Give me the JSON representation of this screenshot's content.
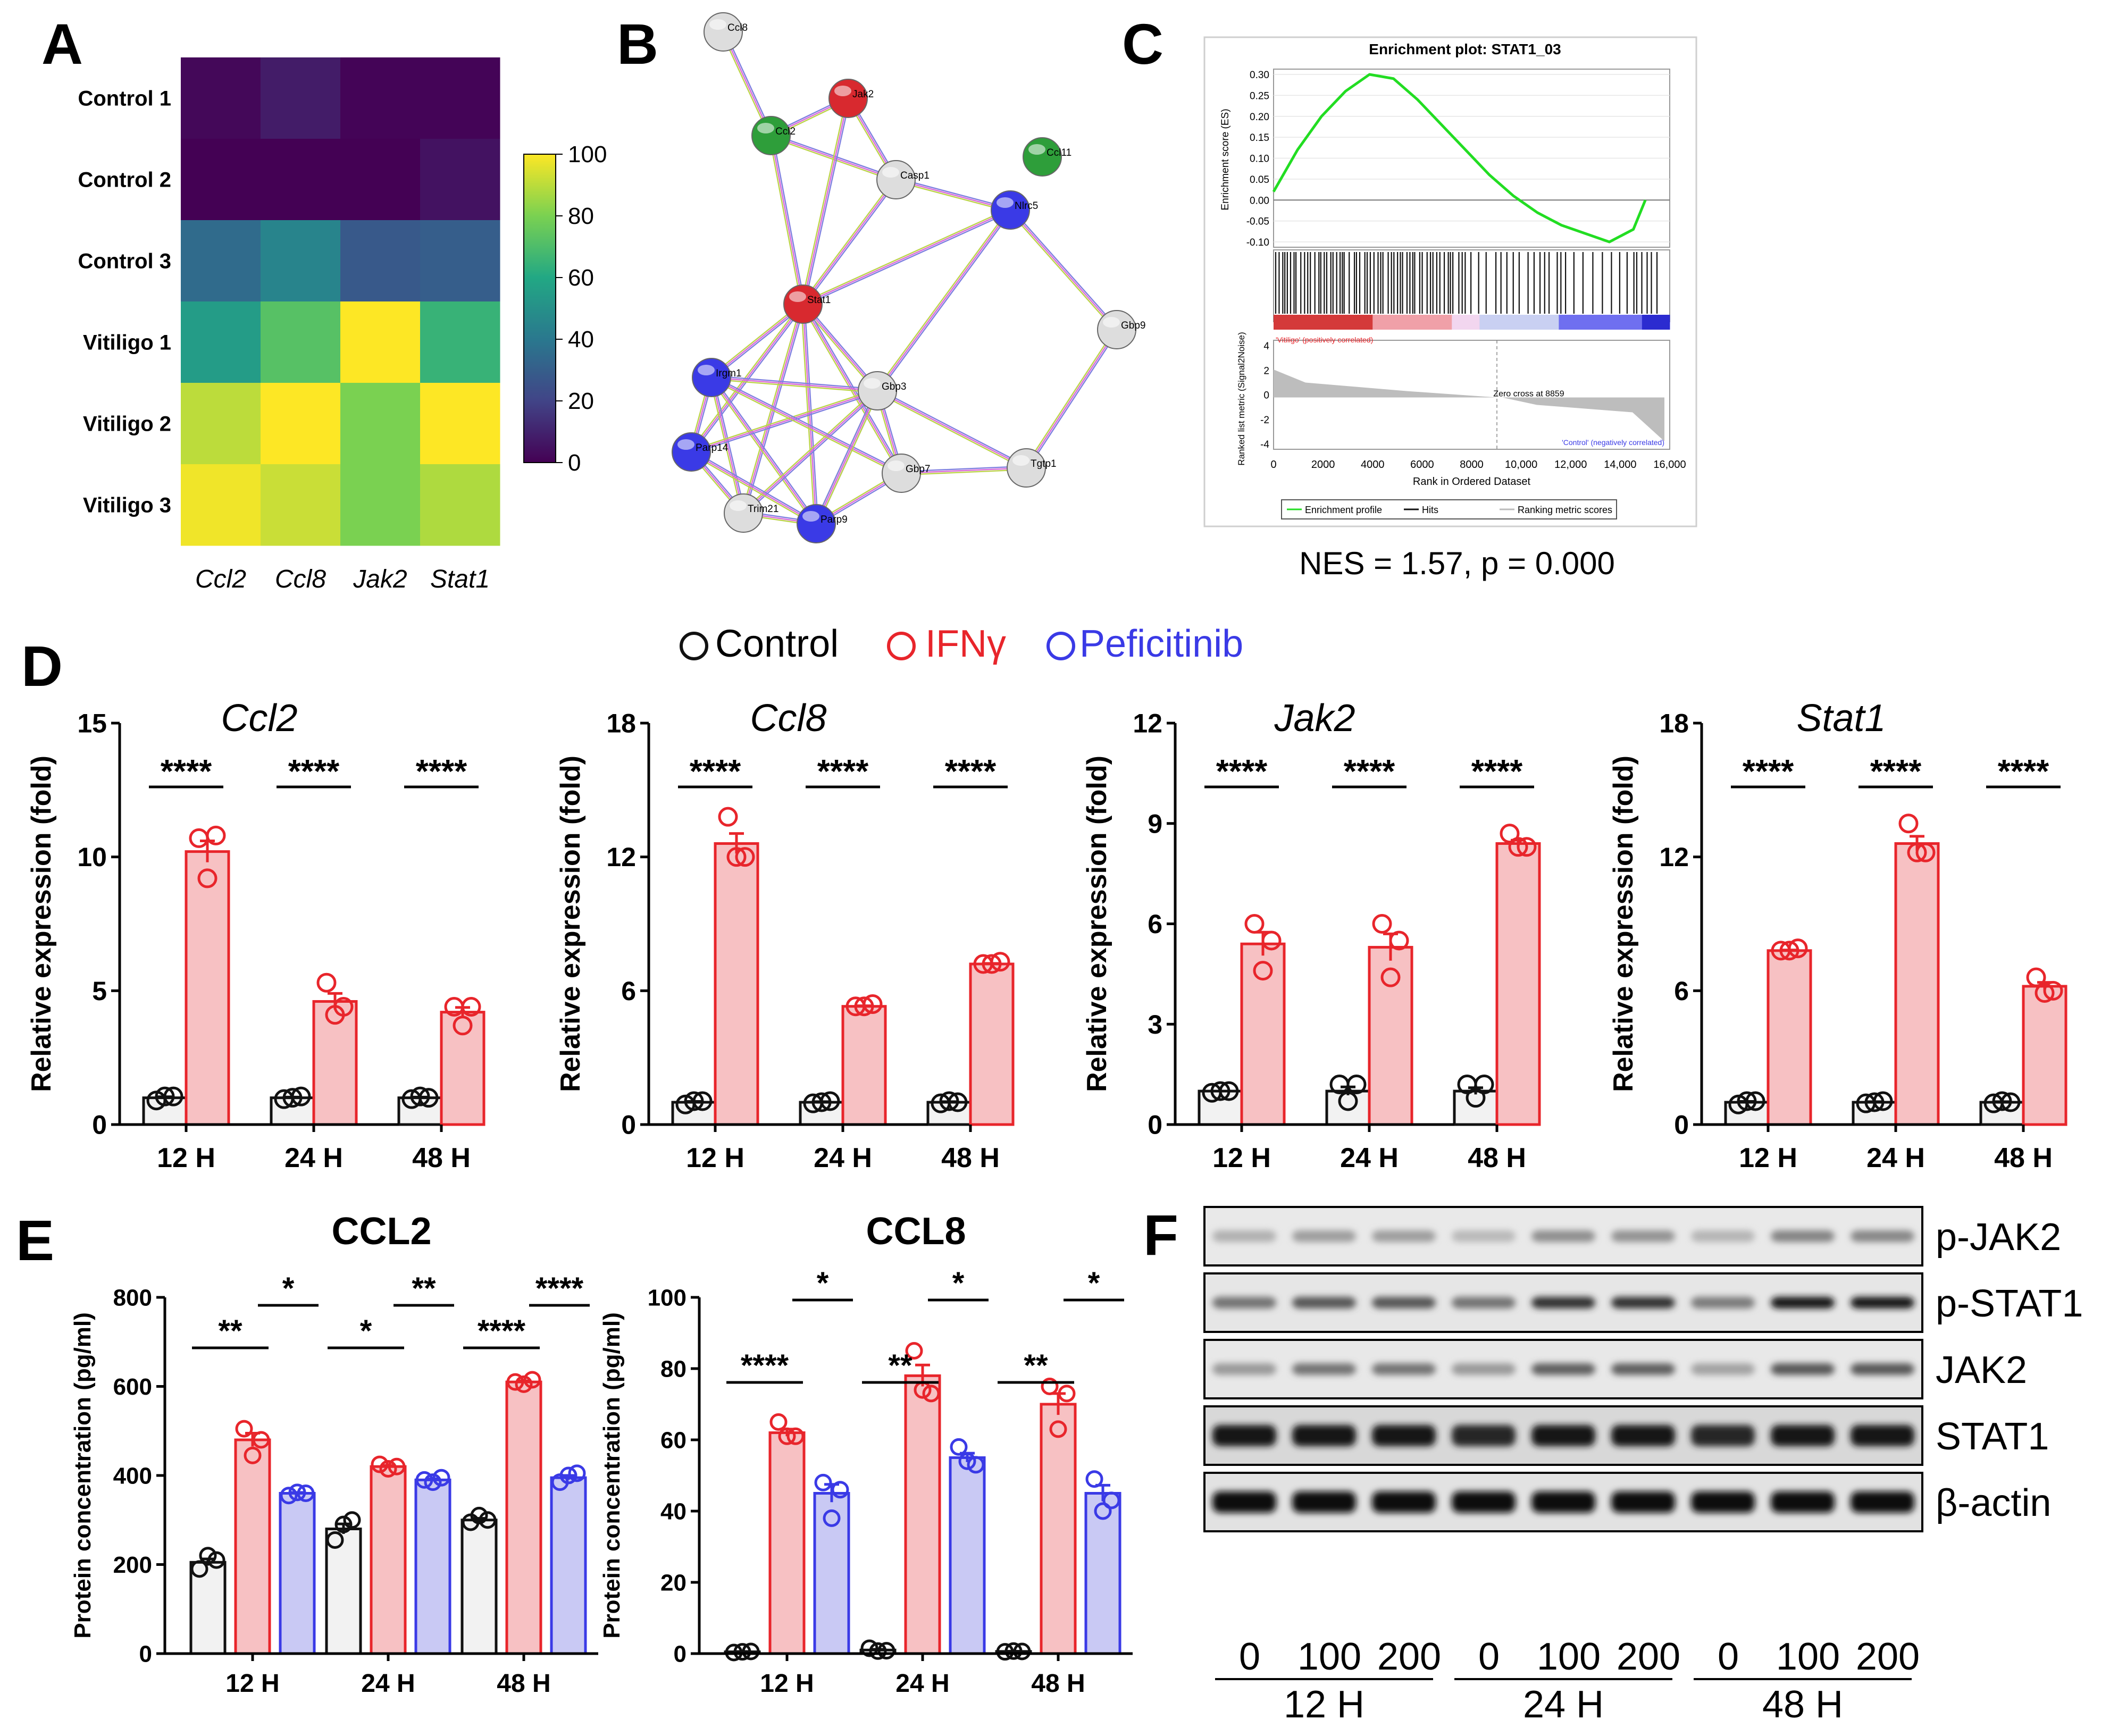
{
  "colors": {
    "control": "#111111",
    "ifng": "#e8252b",
    "peficitinib": "#3a3ae6",
    "ifng_fill": "#f7c1c3",
    "pef_fill": "#c9c9f4",
    "ctrl_fill": "#f2f2f2"
  },
  "panels": {
    "A": "A",
    "B": "B",
    "C": "C",
    "D": "D",
    "E": "E",
    "F": "F"
  },
  "legend": {
    "control": "Control",
    "ifng": "IFNγ",
    "peficitinib": "Peficitinib"
  },
  "network": {
    "nodes": [
      {
        "name": "Ccl8",
        "color": "#dddddd"
      },
      {
        "name": "Jak2",
        "color": "#d8292f"
      },
      {
        "name": "Ccl2",
        "color": "#2e9e3a"
      },
      {
        "name": "Casp1",
        "color": "#dddddd"
      },
      {
        "name": "Ccl11",
        "color": "#2e9e3a"
      },
      {
        "name": "Nlrc5",
        "color": "#3a3ae6"
      },
      {
        "name": "Stat1",
        "color": "#d8292f"
      },
      {
        "name": "Gbp9",
        "color": "#dddddd"
      },
      {
        "name": "Irgm1",
        "color": "#3a3ae6"
      },
      {
        "name": "Gbp3",
        "color": "#dddddd"
      },
      {
        "name": "Parp14",
        "color": "#3a3ae6"
      },
      {
        "name": "Gbp7",
        "color": "#dddddd"
      },
      {
        "name": "Tgtp1",
        "color": "#dddddd"
      },
      {
        "name": "Trim21",
        "color": "#dddddd"
      },
      {
        "name": "Parp9",
        "color": "#3a3ae6"
      }
    ]
  },
  "gsea": {
    "title": "Enrichment plot: STAT1_03",
    "es_label": "Enrichment score (ES)",
    "metric_label": "Ranked list metric (Signal2Noise)",
    "x_label": "Rank in Ordered Dataset",
    "pos_label": "'Vitiligo' (positively correlated)",
    "neg_label": "'Control' (negatively correlated)",
    "zero_cross": "Zero cross at 8859",
    "legend": [
      "Enrichment profile",
      "Hits",
      "Ranking metric scores"
    ],
    "stat": "NES = 1.57, p = 0.000"
  },
  "western": {
    "labels": [
      "p-JAK2",
      "p-STAT1",
      "JAK2",
      "STAT1",
      "β-actin"
    ],
    "doses": [
      "0",
      "100",
      "200",
      "0",
      "100",
      "200",
      "0",
      "100",
      "200"
    ],
    "times": [
      "12 H",
      "24 H",
      "48 H"
    ]
  },
  "chart_data": [
    {
      "type": "heatmap",
      "panel": "A",
      "rows": [
        "Control 1",
        "Control 2",
        "Control 3",
        "Vitiligo 1",
        "Vitiligo 2",
        "Vitiligo 3"
      ],
      "columns": [
        "Ccl2",
        "Ccl8",
        "Jak2",
        "Stat1"
      ],
      "values": [
        [
          2,
          8,
          1,
          1
        ],
        [
          0,
          0,
          0,
          5
        ],
        [
          35,
          45,
          28,
          30
        ],
        [
          55,
          72,
          100,
          65
        ],
        [
          90,
          100,
          80,
          100
        ],
        [
          98,
          92,
          80,
          88
        ]
      ],
      "colorbar": {
        "min": 0,
        "max": 100,
        "ticks": [
          "100",
          "80",
          "60",
          "40",
          "20",
          "0"
        ]
      }
    },
    {
      "type": "line",
      "panel": "C",
      "title": "Enrichment plot: STAT1_03",
      "xlabel": "Rank in Ordered Dataset",
      "ylabel": "Enrichment score (ES)",
      "xlim": [
        0,
        16000
      ],
      "ylim": [
        -0.1,
        0.3
      ],
      "x": [
        0,
        1000,
        2000,
        3000,
        4000,
        5000,
        6000,
        7000,
        8000,
        9000,
        10000,
        11000,
        12000,
        13000,
        14000,
        15000,
        15500
      ],
      "y": [
        0.02,
        0.12,
        0.2,
        0.26,
        0.3,
        0.29,
        0.24,
        0.18,
        0.12,
        0.06,
        0.01,
        -0.03,
        -0.06,
        -0.08,
        -0.1,
        -0.07,
        0.0
      ],
      "xticks": [
        "0",
        "2000",
        "4000",
        "6000",
        "8000",
        "10,000",
        "12,000",
        "14,000",
        "16,000"
      ],
      "yticks": [
        "0.30",
        "0.25",
        "0.20",
        "0.15",
        "0.10",
        "0.05",
        "0.00",
        "-0.05",
        "-0.10"
      ],
      "metric_yticks": [
        "4",
        "2",
        "0",
        "-2",
        "-4"
      ]
    },
    {
      "type": "bar",
      "panel": "D",
      "title": "Ccl2",
      "ylabel": "Relative expression (fold)",
      "categories": [
        "12 H",
        "24 H",
        "48 H"
      ],
      "ylim": [
        0,
        15
      ],
      "yticks": [
        0,
        5,
        10,
        15
      ],
      "series": [
        {
          "name": "Control",
          "values": [
            1.0,
            1.0,
            1.0
          ],
          "points": [
            [
              0.9,
              1.05,
              1.05
            ],
            [
              0.95,
              1.05,
              1.0
            ],
            [
              0.95,
              1.0,
              1.05
            ]
          ]
        },
        {
          "name": "IFNγ",
          "values": [
            10.2,
            4.6,
            4.2
          ],
          "points": [
            [
              10.7,
              10.8,
              9.2
            ],
            [
              5.3,
              4.4,
              4.1
            ],
            [
              4.4,
              4.4,
              3.7
            ]
          ]
        }
      ],
      "significance": [
        "****",
        "****",
        "****"
      ]
    },
    {
      "type": "bar",
      "panel": "D",
      "title": "Ccl8",
      "ylabel": "Relative expression (fold)",
      "categories": [
        "12 H",
        "24 H",
        "48 H"
      ],
      "ylim": [
        0,
        18
      ],
      "yticks": [
        0,
        6,
        12,
        18
      ],
      "series": [
        {
          "name": "Control",
          "values": [
            1.0,
            1.0,
            1.0
          ],
          "points": [
            [
              0.9,
              1.05,
              1.05
            ],
            [
              0.95,
              1.05,
              1.0
            ],
            [
              0.95,
              1.0,
              1.05
            ]
          ]
        },
        {
          "name": "IFNγ",
          "values": [
            12.6,
            5.3,
            7.2
          ],
          "points": [
            [
              13.8,
              12.0,
              12.0
            ],
            [
              5.3,
              5.4,
              5.3
            ],
            [
              7.2,
              7.3,
              7.2
            ]
          ]
        }
      ],
      "significance": [
        "****",
        "****",
        "****"
      ]
    },
    {
      "type": "bar",
      "panel": "D",
      "title": "Jak2",
      "ylabel": "Relative expression (fold)",
      "categories": [
        "12 H",
        "24 H",
        "48 H"
      ],
      "ylim": [
        0,
        12
      ],
      "yticks": [
        0,
        3,
        6,
        9,
        12
      ],
      "series": [
        {
          "name": "Control",
          "values": [
            1.0,
            1.0,
            1.0
          ],
          "points": [
            [
              0.95,
              1.0,
              1.0
            ],
            [
              1.2,
              1.2,
              0.7
            ],
            [
              1.2,
              1.2,
              0.8
            ]
          ]
        },
        {
          "name": "IFNγ",
          "values": [
            5.4,
            5.3,
            8.4
          ],
          "points": [
            [
              6.0,
              5.5,
              4.6
            ],
            [
              6.0,
              5.5,
              4.4
            ],
            [
              8.7,
              8.3,
              8.3
            ]
          ]
        }
      ],
      "significance": [
        "****",
        "****",
        "****"
      ]
    },
    {
      "type": "bar",
      "panel": "D",
      "title": "Stat1",
      "ylabel": "Relative expression (fold)",
      "categories": [
        "12 H",
        "24 H",
        "48 H"
      ],
      "ylim": [
        0,
        18
      ],
      "yticks": [
        0,
        6,
        12,
        18
      ],
      "series": [
        {
          "name": "Control",
          "values": [
            1.0,
            1.0,
            1.0
          ],
          "points": [
            [
              0.9,
              1.05,
              1.05
            ],
            [
              0.95,
              1.05,
              1.0
            ],
            [
              0.95,
              1.0,
              1.05
            ]
          ]
        },
        {
          "name": "IFNγ",
          "values": [
            7.8,
            12.6,
            6.2
          ],
          "points": [
            [
              7.8,
              7.9,
              7.8
            ],
            [
              13.5,
              12.2,
              12.2
            ],
            [
              6.6,
              6.0,
              5.9
            ]
          ]
        }
      ],
      "significance": [
        "****",
        "****",
        "****"
      ]
    },
    {
      "type": "bar",
      "panel": "E",
      "title": "CCL2",
      "ylabel": "Protein concentration (pg/ml)",
      "categories": [
        "12 H",
        "24 H",
        "48 H"
      ],
      "ylim": [
        0,
        800
      ],
      "yticks": [
        0,
        200,
        400,
        600,
        800
      ],
      "series": [
        {
          "name": "Control",
          "values": [
            205,
            280,
            300
          ],
          "points": [
            [
              190,
              210,
              220
            ],
            [
              255,
              300,
              290
            ],
            [
              295,
              300,
              310
            ]
          ]
        },
        {
          "name": "IFNγ",
          "values": [
            480,
            420,
            610
          ],
          "points": [
            [
              505,
              480,
              445
            ],
            [
              425,
              420,
              415
            ],
            [
              610,
              615,
              605
            ]
          ]
        },
        {
          "name": "Peficitinib",
          "values": [
            360,
            390,
            395
          ],
          "points": [
            [
              355,
              360,
              362
            ],
            [
              390,
              395,
              385
            ],
            [
              385,
              405,
              400
            ]
          ]
        }
      ],
      "significance_ctrl_ifn": [
        "**",
        "*",
        "****"
      ],
      "significance_ifn_pef": [
        "*",
        "**",
        "****"
      ]
    },
    {
      "type": "bar",
      "panel": "E",
      "title": "CCL8",
      "ylabel": "Protein concentration (pg/ml)",
      "categories": [
        "12 H",
        "24 H",
        "48 H"
      ],
      "ylim": [
        0,
        100
      ],
      "yticks": [
        0,
        20,
        40,
        60,
        80,
        100
      ],
      "series": [
        {
          "name": "Control",
          "values": [
            0.5,
            1.0,
            0.6
          ],
          "points": [
            [
              0.3,
              0.6,
              0.5
            ],
            [
              1.5,
              0.8,
              0.7
            ],
            [
              0.5,
              0.6,
              0.7
            ]
          ]
        },
        {
          "name": "IFNγ",
          "values": [
            62,
            78,
            70
          ],
          "points": [
            [
              65,
              61,
              61
            ],
            [
              85,
              73,
              74
            ],
            [
              75,
              73,
              63
            ]
          ]
        },
        {
          "name": "Peficitinib",
          "values": [
            45,
            55,
            45
          ],
          "points": [
            [
              48,
              46,
              38
            ],
            [
              58,
              53,
              54
            ],
            [
              49,
              43,
              40
            ]
          ]
        }
      ],
      "significance_ctrl_ifn": [
        "****",
        "**",
        "**"
      ],
      "significance_ifn_pef": [
        "*",
        "*",
        "*"
      ]
    }
  ]
}
